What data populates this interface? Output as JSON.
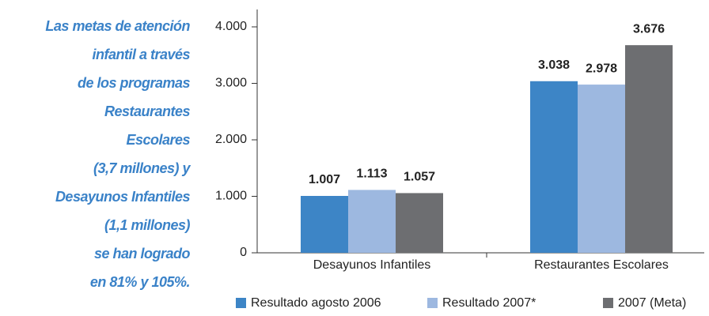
{
  "side_text": [
    "Las metas de atención",
    "infantil a través",
    "de los programas",
    "Restaurantes",
    "Escolares",
    "(3,7 millones) y",
    "Desayunos Infantiles",
    "(1,1 millones)",
    "se han logrado",
    "en 81% y 105%."
  ],
  "chart_data": {
    "type": "bar",
    "categories": [
      "Desayunos Infantiles",
      "Restaurantes Escolares"
    ],
    "series": [
      {
        "name": "Resultado agosto 2006",
        "color": "#3d85c6",
        "values": [
          1007,
          3038
        ],
        "value_labels": [
          "1.007",
          "3.038"
        ]
      },
      {
        "name": "Resultado 2007*",
        "color": "#9db8e0",
        "values": [
          1113,
          2978
        ],
        "value_labels": [
          "1.113",
          "2.978"
        ]
      },
      {
        "name": "2007 (Meta)",
        "color": "#6d6e71",
        "values": [
          1057,
          3676
        ],
        "value_labels": [
          "1.057",
          "3.676"
        ]
      }
    ],
    "ylim": [
      0,
      4000
    ],
    "yticks": [
      0,
      {
        "value": 1000,
        "label": "1.000"
      },
      {
        "value": 2000,
        "label": "2.000"
      },
      {
        "value": 3000,
        "label": "3.000"
      },
      {
        "value": 4000,
        "label": "4.000"
      }
    ],
    "legend": "bottom"
  }
}
